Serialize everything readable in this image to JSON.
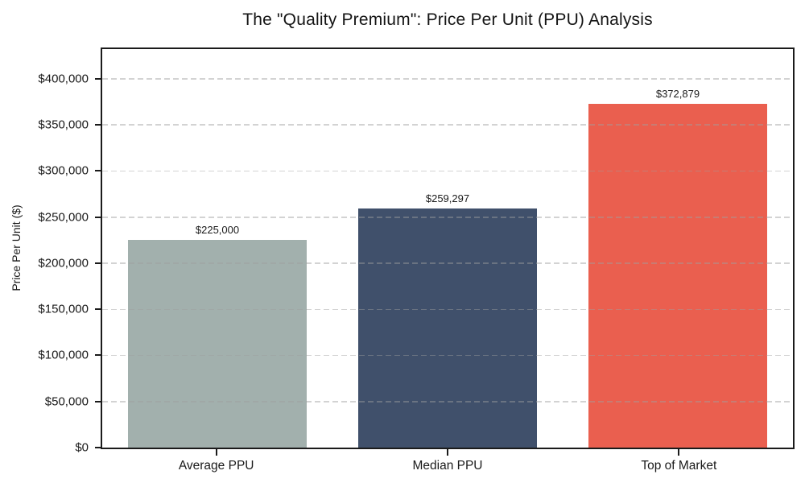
{
  "chart_data": {
    "type": "bar",
    "title": "The \"Quality Premium\": Price Per Unit (PPU) Analysis",
    "xlabel": "",
    "ylabel": "Price Per Unit ($)",
    "categories": [
      "Average PPU",
      "Median PPU",
      "Top of Market"
    ],
    "values": [
      225000,
      259297,
      372879
    ],
    "value_labels": [
      "$225,000",
      "$259,297",
      "$372,879"
    ],
    "bar_colors": [
      "#a2b0ad",
      "#40506b",
      "#ea5f4f"
    ],
    "ylim": [
      0,
      432000
    ],
    "ytick_values": [
      0,
      50000,
      100000,
      150000,
      200000,
      250000,
      300000,
      350000,
      400000
    ],
    "ytick_labels": [
      "$0",
      "$50,000",
      "$100,000",
      "$150,000",
      "$200,000",
      "$250,000",
      "$300,000",
      "$350,000",
      "$400,000"
    ],
    "grid": "horizontal-dashed-above-bars",
    "legend": "none",
    "bar_width_fraction": 0.775
  },
  "colors": {
    "background": "#ffffff",
    "spine": "#1b1b1b",
    "grid": "rgba(158,158,158,0.45)",
    "text": "#1a1a1a"
  }
}
